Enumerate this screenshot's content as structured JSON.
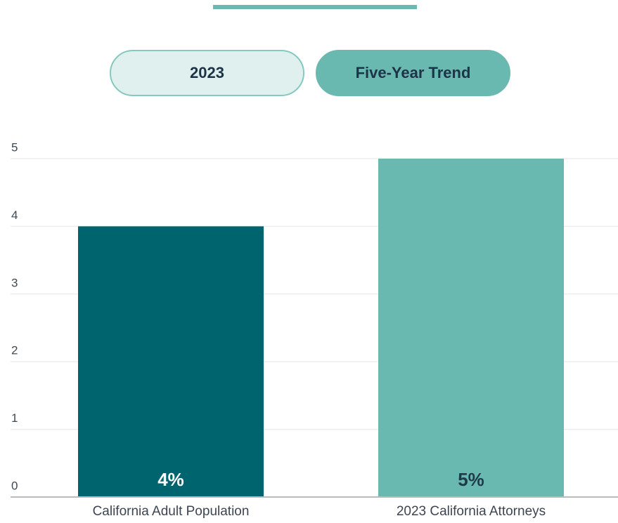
{
  "tabs": [
    "2023",
    "Five-Year Trend"
  ],
  "active_tab": 1,
  "chart_data": {
    "type": "bar",
    "categories": [
      "California Adult Population",
      "2023 California Attorneys"
    ],
    "values": [
      4,
      5
    ],
    "value_labels": [
      "4%",
      "5%"
    ],
    "colors": [
      "#00646e",
      "#6ab9b0"
    ],
    "value_label_colors": [
      "#ffffff",
      "#1d3b4a"
    ],
    "ylim": [
      0,
      5
    ],
    "yticks": [
      0,
      1,
      2,
      3,
      4,
      5
    ],
    "grid": true
  }
}
